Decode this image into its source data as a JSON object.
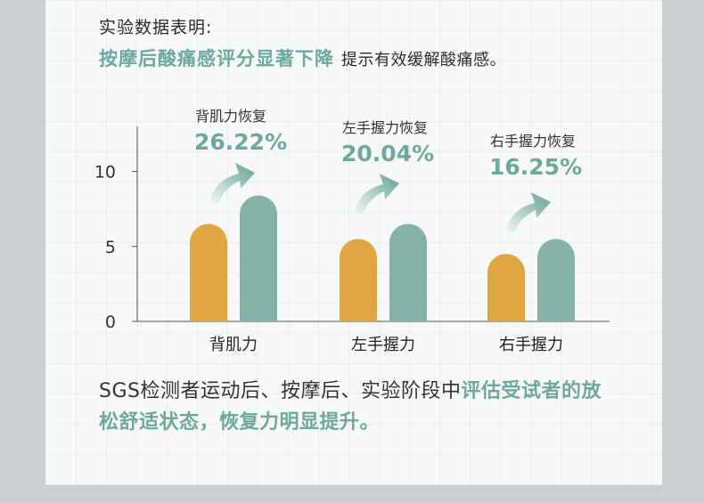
{
  "intro": "实验数据表明:",
  "headline": {
    "highlight": "按摩后酸痛感评分显著下降",
    "rest": "提示有效缓解酸痛感。"
  },
  "colors": {
    "before": "#e0a642",
    "after": "#86b1a8",
    "accent": "#6ea89b"
  },
  "chart_data": {
    "type": "bar",
    "categories": [
      "背肌力",
      "左手握力",
      "右手握力"
    ],
    "series": [
      {
        "values": [
          6.5,
          5.5,
          4.5
        ]
      },
      {
        "values": [
          8.4,
          6.5,
          5.5
        ]
      }
    ],
    "ylim": [
      0,
      13
    ],
    "yticks": [
      0,
      5,
      10
    ],
    "annotations": [
      {
        "label": "背肌力恢复",
        "value": "26.22%"
      },
      {
        "label": "左手握力恢复",
        "value": "20.04%"
      },
      {
        "label": "右手握力恢复",
        "value": "16.25%"
      }
    ]
  },
  "footer": {
    "text_plain": "SGS检测者运动后、按摩后、实验阶段中",
    "text_highlight": "评估受试者的放松舒适状态，恢复力明显提升。"
  }
}
